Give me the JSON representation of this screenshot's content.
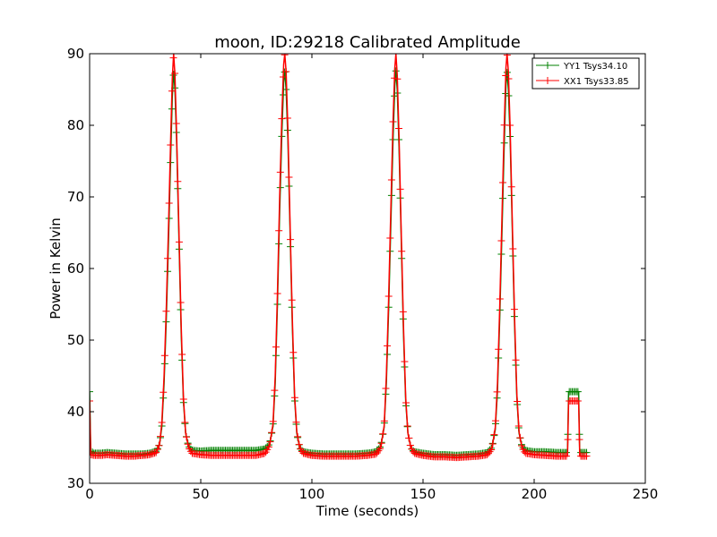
{
  "chart_data": {
    "type": "line",
    "title": "moon, ID:29218 Calibrated Amplitude",
    "xlabel": "Time (seconds)",
    "ylabel": "Power in Kelvin",
    "xlim": [
      0,
      250
    ],
    "ylim": [
      30,
      90
    ],
    "xticks": [
      0,
      50,
      100,
      150,
      200,
      250
    ],
    "yticks": [
      30,
      40,
      50,
      60,
      70,
      80,
      90
    ],
    "grid": false,
    "legend_position": "top-right",
    "series": [
      {
        "name": "YY1 Tsys34.10",
        "color": "#008000",
        "marker": "+",
        "points": [
          [
            0,
            42.8
          ],
          [
            0.5,
            34.5
          ],
          [
            2,
            34.2
          ],
          [
            5,
            34.2
          ],
          [
            8,
            34.3
          ],
          [
            12,
            34.2
          ],
          [
            16,
            34.1
          ],
          [
            20,
            34.1
          ],
          [
            24,
            34.1
          ],
          [
            27,
            34.2
          ],
          [
            30,
            34.5
          ],
          [
            31.5,
            35.5
          ],
          [
            32.5,
            38.0
          ],
          [
            33.5,
            44.0
          ],
          [
            34.5,
            53.0
          ],
          [
            35.5,
            64.0
          ],
          [
            36.5,
            76.0
          ],
          [
            37.2,
            84.0
          ],
          [
            37.8,
            87.6
          ],
          [
            38.4,
            85.0
          ],
          [
            39.2,
            77.0
          ],
          [
            40.2,
            64.0
          ],
          [
            41.2,
            51.0
          ],
          [
            42.2,
            41.5
          ],
          [
            43.2,
            37.0
          ],
          [
            44.5,
            35.2
          ],
          [
            46,
            34.6
          ],
          [
            50,
            34.5
          ],
          [
            55,
            34.6
          ],
          [
            60,
            34.6
          ],
          [
            65,
            34.6
          ],
          [
            70,
            34.6
          ],
          [
            75,
            34.6
          ],
          [
            79,
            34.8
          ],
          [
            81,
            35.5
          ],
          [
            82.5,
            38.0
          ],
          [
            83.5,
            44.0
          ],
          [
            84.5,
            55.0
          ],
          [
            85.5,
            68.0
          ],
          [
            86.5,
            79.0
          ],
          [
            87.3,
            86.0
          ],
          [
            87.8,
            87.6
          ],
          [
            88.4,
            85.0
          ],
          [
            89.2,
            78.0
          ],
          [
            90.2,
            65.0
          ],
          [
            91.2,
            52.0
          ],
          [
            92.2,
            42.0
          ],
          [
            93.2,
            37.0
          ],
          [
            94.5,
            35.0
          ],
          [
            96,
            34.4
          ],
          [
            100,
            34.2
          ],
          [
            105,
            34.1
          ],
          [
            110,
            34.1
          ],
          [
            115,
            34.1
          ],
          [
            120,
            34.1
          ],
          [
            125,
            34.2
          ],
          [
            129,
            34.4
          ],
          [
            131,
            35.2
          ],
          [
            132.5,
            37.8
          ],
          [
            133.5,
            44.0
          ],
          [
            134.5,
            54.0
          ],
          [
            135.5,
            66.0
          ],
          [
            136.5,
            78.0
          ],
          [
            137.3,
            85.5
          ],
          [
            137.8,
            87.6
          ],
          [
            138.4,
            85.0
          ],
          [
            139.2,
            77.0
          ],
          [
            140.2,
            64.0
          ],
          [
            141.2,
            51.0
          ],
          [
            142.2,
            41.5
          ],
          [
            143.2,
            37.0
          ],
          [
            144.5,
            35.0
          ],
          [
            146,
            34.4
          ],
          [
            150,
            34.2
          ],
          [
            155,
            34.0
          ],
          [
            160,
            34.0
          ],
          [
            165,
            33.9
          ],
          [
            170,
            34.0
          ],
          [
            175,
            34.1
          ],
          [
            179,
            34.3
          ],
          [
            181,
            35.0
          ],
          [
            182.5,
            37.5
          ],
          [
            183.5,
            43.0
          ],
          [
            184.5,
            53.0
          ],
          [
            185.5,
            65.0
          ],
          [
            186.5,
            77.0
          ],
          [
            187.3,
            85.5
          ],
          [
            187.8,
            87.6
          ],
          [
            188.4,
            85.0
          ],
          [
            189.2,
            78.0
          ],
          [
            190.2,
            65.0
          ],
          [
            191.2,
            52.0
          ],
          [
            192.2,
            42.0
          ],
          [
            193.2,
            37.0
          ],
          [
            194.5,
            35.2
          ],
          [
            196,
            34.6
          ],
          [
            200,
            34.4
          ],
          [
            205,
            34.4
          ],
          [
            210,
            34.3
          ],
          [
            214,
            34.3
          ],
          [
            215,
            34.3
          ],
          [
            215.5,
            42.8
          ],
          [
            218,
            42.8
          ],
          [
            220,
            42.8
          ],
          [
            220.5,
            34.3
          ],
          [
            222,
            34.3
          ],
          [
            224,
            34.3
          ]
        ]
      },
      {
        "name": "XX1 Tsys33.85",
        "color": "#ff0000",
        "marker": "+",
        "points": [
          [
            0,
            41.5
          ],
          [
            0.5,
            34.0
          ],
          [
            2,
            33.9
          ],
          [
            5,
            33.9
          ],
          [
            8,
            34.0
          ],
          [
            12,
            33.9
          ],
          [
            16,
            33.8
          ],
          [
            20,
            33.8
          ],
          [
            24,
            33.9
          ],
          [
            27,
            34.0
          ],
          [
            30,
            34.3
          ],
          [
            31.5,
            35.5
          ],
          [
            32.5,
            38.5
          ],
          [
            33.5,
            45.0
          ],
          [
            34.5,
            54.5
          ],
          [
            35.5,
            66.0
          ],
          [
            36.5,
            78.5
          ],
          [
            37.2,
            86.5
          ],
          [
            37.8,
            90.0
          ],
          [
            38.4,
            87.0
          ],
          [
            39.2,
            78.0
          ],
          [
            40.2,
            65.0
          ],
          [
            41.2,
            52.0
          ],
          [
            42.2,
            42.0
          ],
          [
            43.2,
            37.0
          ],
          [
            44.5,
            35.0
          ],
          [
            46,
            34.2
          ],
          [
            50,
            34.0
          ],
          [
            55,
            33.9
          ],
          [
            60,
            33.9
          ],
          [
            65,
            33.9
          ],
          [
            70,
            33.9
          ],
          [
            75,
            33.9
          ],
          [
            79,
            34.2
          ],
          [
            81,
            35.3
          ],
          [
            82.5,
            38.3
          ],
          [
            83.5,
            45.0
          ],
          [
            84.5,
            56.5
          ],
          [
            85.5,
            70.0
          ],
          [
            86.5,
            81.5
          ],
          [
            87.3,
            88.5
          ],
          [
            87.8,
            90.0
          ],
          [
            88.4,
            87.5
          ],
          [
            89.2,
            79.5
          ],
          [
            90.2,
            66.0
          ],
          [
            91.2,
            53.0
          ],
          [
            92.2,
            42.5
          ],
          [
            93.2,
            37.2
          ],
          [
            94.5,
            35.0
          ],
          [
            96,
            34.2
          ],
          [
            100,
            33.9
          ],
          [
            105,
            33.8
          ],
          [
            110,
            33.8
          ],
          [
            115,
            33.8
          ],
          [
            120,
            33.8
          ],
          [
            125,
            33.9
          ],
          [
            129,
            34.1
          ],
          [
            131,
            35.0
          ],
          [
            132.5,
            38.0
          ],
          [
            133.5,
            45.0
          ],
          [
            134.5,
            55.5
          ],
          [
            135.5,
            68.0
          ],
          [
            136.5,
            80.5
          ],
          [
            137.3,
            88.0
          ],
          [
            137.8,
            90.0
          ],
          [
            138.4,
            87.0
          ],
          [
            139.2,
            78.5
          ],
          [
            140.2,
            65.0
          ],
          [
            141.2,
            52.0
          ],
          [
            142.2,
            42.0
          ],
          [
            143.2,
            37.0
          ],
          [
            144.5,
            35.0
          ],
          [
            146,
            34.2
          ],
          [
            150,
            33.9
          ],
          [
            155,
            33.7
          ],
          [
            160,
            33.7
          ],
          [
            165,
            33.6
          ],
          [
            170,
            33.7
          ],
          [
            175,
            33.8
          ],
          [
            179,
            34.0
          ],
          [
            181,
            34.8
          ],
          [
            182.5,
            37.8
          ],
          [
            183.5,
            44.0
          ],
          [
            184.5,
            54.5
          ],
          [
            185.5,
            67.0
          ],
          [
            186.5,
            79.5
          ],
          [
            187.3,
            88.0
          ],
          [
            187.8,
            90.0
          ],
          [
            188.4,
            87.5
          ],
          [
            189.2,
            79.5
          ],
          [
            190.2,
            66.0
          ],
          [
            191.2,
            53.0
          ],
          [
            192.2,
            42.5
          ],
          [
            193.2,
            37.2
          ],
          [
            194.5,
            35.0
          ],
          [
            196,
            34.2
          ],
          [
            200,
            34.0
          ],
          [
            205,
            33.9
          ],
          [
            210,
            33.8
          ],
          [
            214,
            33.8
          ],
          [
            215,
            33.8
          ],
          [
            215.5,
            41.5
          ],
          [
            218,
            41.5
          ],
          [
            220,
            41.5
          ],
          [
            220.5,
            33.8
          ],
          [
            222,
            33.8
          ],
          [
            224,
            33.8
          ]
        ]
      }
    ]
  }
}
